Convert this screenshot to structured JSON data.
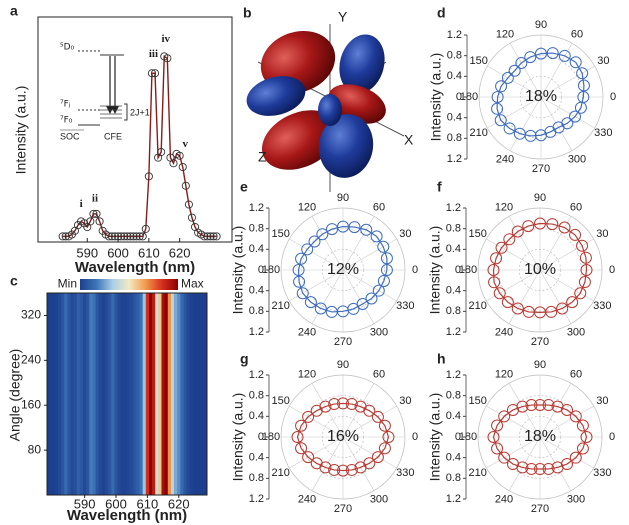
{
  "diagram": {
    "label": "b",
    "axes": [
      "Y",
      "Z",
      "X"
    ]
  },
  "chart_data": [
    {
      "type": "line",
      "label": "a",
      "xlabel": "Wavelength (nm)",
      "ylabel": "Intensity (a.u.)",
      "xlim": [
        574,
        637
      ],
      "ylim": [
        0,
        1.2
      ],
      "xticks": [
        590,
        600,
        610,
        620
      ],
      "color": "#8b1a1a",
      "marker_color": "#333333",
      "x": [
        582,
        583,
        584,
        585,
        586,
        587,
        588,
        589,
        590,
        591,
        592,
        593,
        594,
        595,
        596,
        597,
        598,
        599,
        600,
        601,
        602,
        603,
        604,
        605,
        606,
        607,
        608,
        609,
        610,
        611,
        612,
        613,
        614,
        615,
        616,
        617,
        618,
        619,
        620,
        621,
        622,
        623,
        624,
        625,
        626,
        627,
        628,
        629,
        630,
        631,
        632
      ],
      "values": [
        0.03,
        0.03,
        0.03,
        0.04,
        0.06,
        0.09,
        0.11,
        0.1,
        0.08,
        0.11,
        0.15,
        0.15,
        0.11,
        0.06,
        0.04,
        0.03,
        0.03,
        0.03,
        0.03,
        0.03,
        0.03,
        0.03,
        0.03,
        0.03,
        0.03,
        0.03,
        0.03,
        0.07,
        0.35,
        0.9,
        0.9,
        0.45,
        0.48,
        0.99,
        0.98,
        0.45,
        0.42,
        0.47,
        0.46,
        0.4,
        0.3,
        0.2,
        0.13,
        0.08,
        0.05,
        0.04,
        0.03,
        0.03,
        0.03,
        0.03,
        0.03
      ],
      "annotations": [
        {
          "text": "i",
          "x": 588,
          "y": 0.2
        },
        {
          "text": "ii",
          "x": 592.5,
          "y": 0.23
        },
        {
          "text": "iii",
          "x": 611.5,
          "y": 1.0
        },
        {
          "text": "iv",
          "x": 615.5,
          "y": 1.08
        },
        {
          "text": "v",
          "x": 621.8,
          "y": 0.52
        }
      ],
      "inset": {
        "levels": [
          "⁵D₀",
          "⁷Fⱼ",
          "⁷F₀"
        ],
        "labels": [
          "SOC",
          "CFE",
          "2J+1"
        ]
      }
    },
    {
      "type": "heatmap",
      "label": "c",
      "xlabel": "Wavelength (nm)",
      "ylabel": "Angle (degree)",
      "xlim": [
        578,
        629
      ],
      "ylim": [
        0,
        360
      ],
      "xticks": [
        590,
        600,
        610,
        620
      ],
      "yticks": [
        80,
        160,
        240,
        320
      ],
      "colorbar": {
        "min": "Min",
        "max": "Max"
      },
      "colormap": [
        "#1d3f8f",
        "#3d74b8",
        "#a9cfe6",
        "#f3e9c4",
        "#f29c4c",
        "#d7301f",
        "#8b0000"
      ],
      "x": [
        578,
        579,
        580,
        581,
        582,
        583,
        584,
        585,
        586,
        587,
        588,
        589,
        590,
        591,
        592,
        593,
        594,
        595,
        596,
        597,
        598,
        599,
        600,
        601,
        602,
        603,
        604,
        605,
        606,
        607,
        608,
        609,
        610,
        611,
        612,
        613,
        614,
        615,
        616,
        617,
        618,
        619,
        620,
        621,
        622,
        623,
        624,
        625,
        626,
        627,
        628,
        629
      ],
      "values": [
        0.05,
        0.05,
        0.05,
        0.06,
        0.08,
        0.12,
        0.18,
        0.12,
        0.08,
        0.1,
        0.15,
        0.12,
        0.08,
        0.12,
        0.22,
        0.2,
        0.12,
        0.08,
        0.06,
        0.08,
        0.12,
        0.18,
        0.12,
        0.08,
        0.06,
        0.06,
        0.07,
        0.09,
        0.12,
        0.15,
        0.2,
        0.35,
        0.85,
        1.0,
        0.9,
        0.45,
        0.6,
        0.95,
        1.0,
        0.7,
        0.4,
        0.3,
        0.25,
        0.18,
        0.12,
        0.08,
        0.06,
        0.05,
        0.05,
        0.05,
        0.05,
        0.05
      ]
    },
    {
      "type": "polar",
      "label": "d",
      "ylabel": "Intensity (a.u.)",
      "annotation": "18%",
      "color": "#3d6cc0",
      "text_color": "#2b4f9e",
      "rlim": [
        0,
        1.2
      ],
      "rticks": [
        0,
        0.4,
        0.8,
        1.2
      ],
      "thetaticks": [
        0,
        30,
        60,
        90,
        120,
        150,
        180,
        210,
        240,
        270,
        300,
        330
      ],
      "theta": [
        0,
        15,
        30,
        45,
        60,
        75,
        90,
        105,
        120,
        135,
        150,
        165,
        180,
        195,
        210,
        225,
        240,
        255,
        270,
        285,
        300,
        315,
        330,
        345
      ],
      "values": [
        0.82,
        0.86,
        0.92,
        0.95,
        0.92,
        0.88,
        0.84,
        0.8,
        0.76,
        0.72,
        0.74,
        0.8,
        0.84,
        0.88,
        0.9,
        0.86,
        0.82,
        0.78,
        0.74,
        0.7,
        0.68,
        0.72,
        0.76,
        0.8
      ]
    },
    {
      "type": "polar",
      "label": "e",
      "ylabel": "Intensity (a.u.)",
      "annotation": "12%",
      "color": "#3d6cc0",
      "text_color": "#2b4f9e",
      "rlim": [
        0,
        1.2
      ],
      "rticks": [
        0,
        0.4,
        0.8,
        1.2
      ],
      "thetaticks": [
        0,
        30,
        60,
        90,
        120,
        150,
        180,
        210,
        240,
        270,
        300,
        330
      ],
      "theta": [
        0,
        15,
        30,
        45,
        60,
        75,
        90,
        105,
        120,
        135,
        150,
        165,
        180,
        195,
        210,
        225,
        240,
        255,
        270,
        285,
        300,
        315,
        330,
        345
      ],
      "values": [
        0.85,
        0.88,
        0.9,
        0.92,
        0.9,
        0.86,
        0.84,
        0.82,
        0.8,
        0.78,
        0.8,
        0.84,
        0.86,
        0.88,
        0.9,
        0.88,
        0.86,
        0.84,
        0.8,
        0.78,
        0.76,
        0.78,
        0.8,
        0.82
      ]
    },
    {
      "type": "polar",
      "label": "f",
      "ylabel": "Intensity (a.u.)",
      "annotation": "10%",
      "color": "#b83a32",
      "text_color": "#a31f1f",
      "rlim": [
        0,
        1.2
      ],
      "rticks": [
        0,
        0.4,
        0.8,
        1.2
      ],
      "thetaticks": [
        0,
        30,
        60,
        90,
        120,
        150,
        180,
        210,
        240,
        270,
        300,
        330
      ],
      "theta": [
        0,
        15,
        30,
        45,
        60,
        75,
        90,
        105,
        120,
        135,
        150,
        165,
        180,
        195,
        210,
        225,
        240,
        255,
        270,
        285,
        300,
        315,
        330,
        345
      ],
      "values": [
        0.9,
        0.92,
        0.94,
        0.96,
        0.95,
        0.92,
        0.9,
        0.88,
        0.86,
        0.84,
        0.86,
        0.88,
        0.9,
        0.92,
        0.9,
        0.88,
        0.86,
        0.84,
        0.82,
        0.84,
        0.86,
        0.88,
        0.9,
        0.9
      ]
    },
    {
      "type": "polar",
      "label": "g",
      "ylabel": "Intensity (a.u.)",
      "annotation": "16%",
      "color": "#b83a32",
      "text_color": "#a31f1f",
      "rlim": [
        0,
        1.2
      ],
      "rticks": [
        0,
        0.4,
        0.8,
        1.2
      ],
      "thetaticks": [
        0,
        30,
        60,
        90,
        120,
        150,
        180,
        210,
        240,
        270,
        300,
        330
      ],
      "theta": [
        0,
        15,
        30,
        45,
        60,
        75,
        90,
        105,
        120,
        135,
        150,
        165,
        180,
        195,
        210,
        225,
        240,
        255,
        270,
        285,
        300,
        315,
        330,
        345
      ],
      "values": [
        0.88,
        0.84,
        0.78,
        0.72,
        0.68,
        0.66,
        0.65,
        0.66,
        0.68,
        0.72,
        0.78,
        0.84,
        0.88,
        0.84,
        0.78,
        0.72,
        0.68,
        0.66,
        0.65,
        0.66,
        0.68,
        0.72,
        0.78,
        0.84
      ]
    },
    {
      "type": "polar",
      "label": "h",
      "ylabel": "Intensity (a.u.)",
      "annotation": "18%",
      "color": "#b83a32",
      "text_color": "#a31f1f",
      "rlim": [
        0,
        1.2
      ],
      "rticks": [
        0,
        0.4,
        0.8,
        1.2
      ],
      "thetaticks": [
        0,
        30,
        60,
        90,
        120,
        150,
        180,
        210,
        240,
        270,
        300,
        330
      ],
      "theta": [
        0,
        15,
        30,
        45,
        60,
        75,
        90,
        105,
        120,
        135,
        150,
        165,
        180,
        195,
        210,
        225,
        240,
        255,
        270,
        285,
        300,
        315,
        330,
        345
      ],
      "values": [
        0.9,
        0.86,
        0.8,
        0.74,
        0.68,
        0.64,
        0.62,
        0.64,
        0.68,
        0.74,
        0.8,
        0.86,
        0.9,
        0.86,
        0.8,
        0.74,
        0.68,
        0.64,
        0.62,
        0.64,
        0.68,
        0.74,
        0.8,
        0.86
      ]
    }
  ]
}
